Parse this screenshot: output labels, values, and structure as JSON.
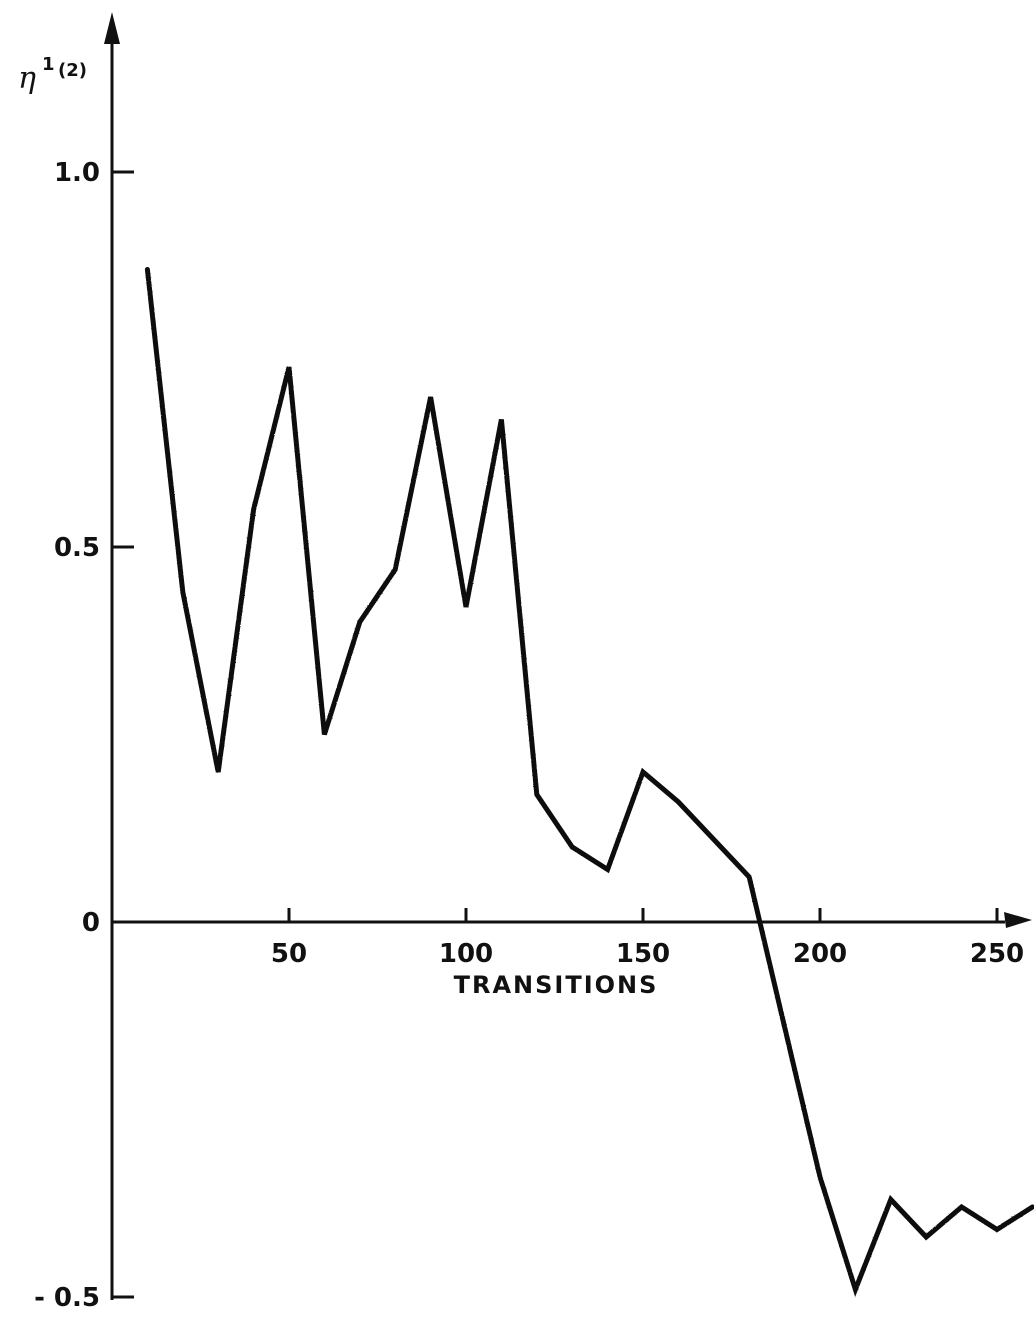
{
  "chart_data": {
    "type": "line",
    "xlabel": "TRANSITIONS",
    "ylabel": "η",
    "ylabel_superscript": "1",
    "ylabel_suffix": "(2)",
    "xlim": [
      0,
      260
    ],
    "ylim": [
      -0.5,
      1.0
    ],
    "x_ticks": [
      {
        "value": 50,
        "label": "50"
      },
      {
        "value": 100,
        "label": "100"
      },
      {
        "value": 150,
        "label": "150"
      },
      {
        "value": 200,
        "label": "200"
      },
      {
        "value": 250,
        "label": "250"
      }
    ],
    "y_ticks": [
      {
        "value": 1.0,
        "label": "1.0"
      },
      {
        "value": 0.5,
        "label": "0.5"
      },
      {
        "value": 0,
        "label": "0"
      },
      {
        "value": -0.5,
        "label": "- 0.5"
      }
    ],
    "grid": false,
    "series": [
      {
        "x": [
          10,
          20,
          30,
          40,
          50,
          60,
          70,
          80,
          90,
          100,
          110,
          120,
          130,
          140,
          150,
          160,
          170,
          180,
          190,
          200,
          210,
          220,
          230,
          240,
          250,
          260
        ],
        "y": [
          0.87,
          0.44,
          0.2,
          0.55,
          0.74,
          0.25,
          0.4,
          0.47,
          0.7,
          0.42,
          0.67,
          0.17,
          0.1,
          0.07,
          0.2,
          0.16,
          0.11,
          0.06,
          -0.14,
          -0.34,
          -0.49,
          -0.37,
          -0.42,
          -0.38,
          -0.41,
          -0.38
        ]
      }
    ]
  }
}
